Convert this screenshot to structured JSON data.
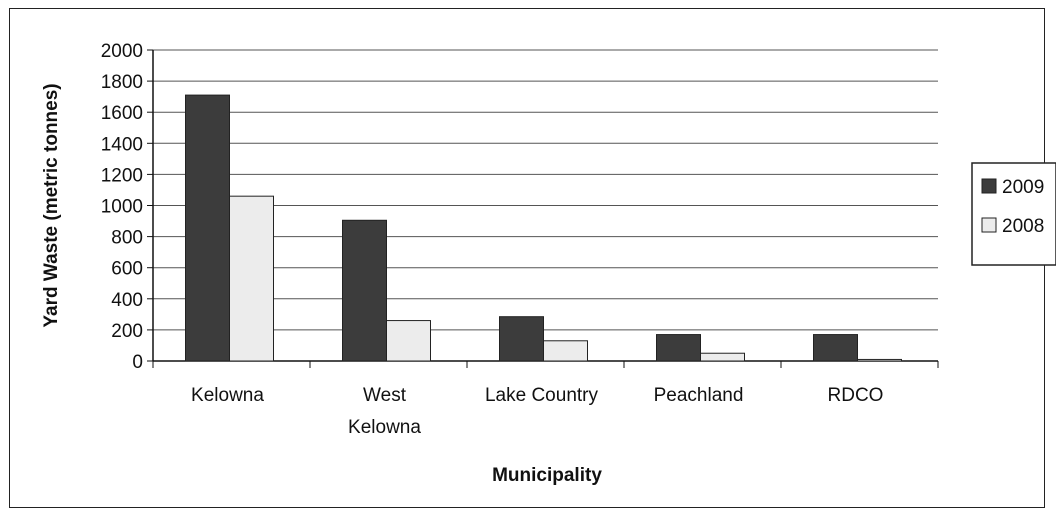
{
  "chart_data": {
    "type": "bar",
    "title": "",
    "xlabel": "Municipality",
    "ylabel": "Yard Waste (metric tonnes)",
    "ylim": [
      0,
      2000
    ],
    "yticks": [
      0,
      200,
      400,
      600,
      800,
      1000,
      1200,
      1400,
      1600,
      1800,
      2000
    ],
    "grid": true,
    "legend": "right",
    "categories": [
      [
        "Kelowna"
      ],
      [
        "West",
        "Kelowna"
      ],
      [
        "Lake Country"
      ],
      [
        "Peachland"
      ],
      [
        "RDCO"
      ]
    ],
    "series": [
      {
        "name": "2009",
        "color": "#3c3c3c",
        "values": [
          1710,
          905,
          285,
          170,
          170
        ]
      },
      {
        "name": "2008",
        "color": "#ececec",
        "values": [
          1060,
          260,
          130,
          50,
          10
        ]
      }
    ]
  }
}
